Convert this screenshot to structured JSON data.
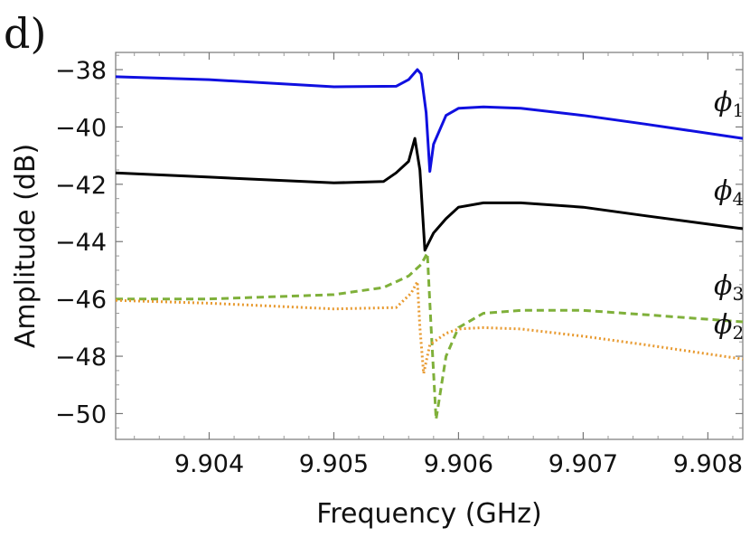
{
  "chart_data": {
    "type": "line",
    "panel_label": "d)",
    "title": "",
    "xlabel": "Frequency (GHz)",
    "ylabel": "Amplitude (dB)",
    "xlim": [
      9.90325,
      9.90828
    ],
    "ylim": [
      -50.9,
      -37.4
    ],
    "x_ticks": [
      9.904,
      9.905,
      9.906,
      9.907,
      9.908
    ],
    "x_tick_labels": [
      "9.904",
      "9.905",
      "9.906",
      "9.907",
      "9.908"
    ],
    "y_ticks": [
      -38,
      -40,
      -42,
      -44,
      -46,
      -48,
      -50
    ],
    "y_tick_labels": [
      "−38",
      "−40",
      "−42",
      "−44",
      "−46",
      "−48",
      "−50"
    ],
    "grid": false,
    "legend": "inline labels at right end of curves",
    "series": [
      {
        "name": "ϕ",
        "subscript": "1",
        "color": "#1010e0",
        "style": "solid",
        "points": [
          [
            9.90325,
            -38.25
          ],
          [
            9.904,
            -38.35
          ],
          [
            9.905,
            -38.6
          ],
          [
            9.9055,
            -38.58
          ],
          [
            9.9056,
            -38.35
          ],
          [
            9.90567,
            -38.0
          ],
          [
            9.9057,
            -38.15
          ],
          [
            9.90574,
            -39.5
          ],
          [
            9.90577,
            -41.55
          ],
          [
            9.9058,
            -40.6
          ],
          [
            9.9059,
            -39.6
          ],
          [
            9.906,
            -39.35
          ],
          [
            9.9062,
            -39.3
          ],
          [
            9.9065,
            -39.35
          ],
          [
            9.907,
            -39.6
          ],
          [
            9.9075,
            -39.9
          ],
          [
            9.90828,
            -40.4
          ]
        ]
      },
      {
        "name": "ϕ",
        "subscript": "4",
        "color": "#000000",
        "style": "solid",
        "points": [
          [
            9.90325,
            -41.6
          ],
          [
            9.904,
            -41.75
          ],
          [
            9.905,
            -41.95
          ],
          [
            9.9054,
            -41.9
          ],
          [
            9.9055,
            -41.6
          ],
          [
            9.9056,
            -41.2
          ],
          [
            9.90565,
            -40.4
          ],
          [
            9.90569,
            -41.5
          ],
          [
            9.90573,
            -44.3
          ],
          [
            9.9058,
            -43.7
          ],
          [
            9.9059,
            -43.2
          ],
          [
            9.906,
            -42.8
          ],
          [
            9.9062,
            -42.65
          ],
          [
            9.9065,
            -42.65
          ],
          [
            9.907,
            -42.8
          ],
          [
            9.9075,
            -43.1
          ],
          [
            9.90828,
            -43.55
          ]
        ]
      },
      {
        "name": "ϕ",
        "subscript": "3",
        "color": "#7fb03a",
        "style": "dashed",
        "points": [
          [
            9.90325,
            -46.0
          ],
          [
            9.904,
            -46.0
          ],
          [
            9.905,
            -45.85
          ],
          [
            9.9054,
            -45.6
          ],
          [
            9.9056,
            -45.2
          ],
          [
            9.9057,
            -44.8
          ],
          [
            9.90575,
            -44.4
          ],
          [
            9.90578,
            -47.0
          ],
          [
            9.90582,
            -50.2
          ],
          [
            9.9059,
            -48.0
          ],
          [
            9.906,
            -47.0
          ],
          [
            9.9062,
            -46.5
          ],
          [
            9.9065,
            -46.4
          ],
          [
            9.907,
            -46.4
          ],
          [
            9.9075,
            -46.55
          ],
          [
            9.90828,
            -46.8
          ]
        ]
      },
      {
        "name": "ϕ",
        "subscript": "2",
        "color": "#e89a30",
        "style": "dotted",
        "points": [
          [
            9.90325,
            -46.05
          ],
          [
            9.904,
            -46.15
          ],
          [
            9.905,
            -46.35
          ],
          [
            9.9055,
            -46.3
          ],
          [
            9.90562,
            -45.8
          ],
          [
            9.90567,
            -45.4
          ],
          [
            9.90569,
            -47.0
          ],
          [
            9.90572,
            -48.6
          ],
          [
            9.90577,
            -47.6
          ],
          [
            9.9059,
            -47.2
          ],
          [
            9.906,
            -47.05
          ],
          [
            9.9062,
            -47.0
          ],
          [
            9.9065,
            -47.05
          ],
          [
            9.907,
            -47.3
          ],
          [
            9.9075,
            -47.6
          ],
          [
            9.90828,
            -48.1
          ]
        ]
      }
    ]
  }
}
